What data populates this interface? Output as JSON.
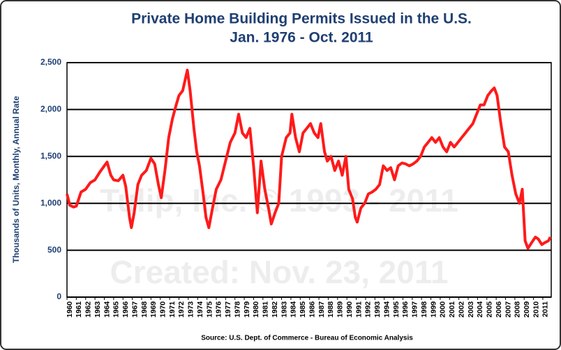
{
  "chart_data": {
    "type": "line",
    "title": "Private Home Building Permits Issued in the U.S.",
    "subtitle": "Jan. 1976 - Oct. 2011",
    "ylabel": "Thousands of Units, Monthly, Annual Rate",
    "source": "Source: U.S. Dept. of Commerce - Bureau of Economic Analysis",
    "annotations": [
      "Tulip, Inc. © 1993 - 2011",
      "Created: Nov. 23, 2011"
    ],
    "xlim": [
      1960,
      2011.9
    ],
    "ylim": [
      0,
      2500
    ],
    "yticks": [
      0,
      500,
      {
        "value": 1000,
        "label": "1,000"
      },
      {
        "value": 1500,
        "label": "1,500"
      },
      {
        "value": 2000,
        "label": "2,000"
      },
      {
        "value": 2500,
        "label": "2,500"
      }
    ],
    "xticks": [
      1960,
      1961,
      1962,
      1963,
      1964,
      1965,
      1966,
      1967,
      1968,
      1969,
      1970,
      1971,
      1972,
      1973,
      1974,
      1975,
      1976,
      1977,
      1978,
      1979,
      1980,
      1981,
      1982,
      1983,
      1984,
      1985,
      1986,
      1987,
      1988,
      1989,
      1990,
      1991,
      1992,
      1993,
      1994,
      1995,
      1996,
      1997,
      1998,
      1999,
      2000,
      2001,
      2002,
      2003,
      2004,
      2005,
      2006,
      2007,
      2008,
      2009,
      2010,
      2011
    ],
    "grid": true,
    "x": [
      1960.0,
      1960.3,
      1960.7,
      1961.0,
      1961.5,
      1962.0,
      1962.5,
      1963.0,
      1963.5,
      1964.0,
      1964.3,
      1964.7,
      1965.0,
      1965.5,
      1966.0,
      1966.3,
      1966.7,
      1966.9,
      1967.2,
      1967.6,
      1968.0,
      1968.5,
      1969.0,
      1969.4,
      1969.8,
      1970.1,
      1970.5,
      1970.9,
      1971.3,
      1971.7,
      1972.0,
      1972.4,
      1972.9,
      1973.2,
      1973.6,
      1973.9,
      1974.2,
      1974.6,
      1974.9,
      1975.2,
      1975.6,
      1976.0,
      1976.5,
      1977.0,
      1977.5,
      1978.0,
      1978.4,
      1978.8,
      1979.2,
      1979.6,
      1980.0,
      1980.4,
      1980.8,
      1981.2,
      1981.6,
      1981.9,
      1982.3,
      1982.7,
      1983.0,
      1983.5,
      1983.9,
      1984.1,
      1984.5,
      1984.9,
      1985.3,
      1985.7,
      1986.1,
      1986.5,
      1986.9,
      1987.2,
      1987.6,
      1987.9,
      1988.3,
      1988.7,
      1989.1,
      1989.5,
      1989.9,
      1990.2,
      1990.6,
      1990.9,
      1991.1,
      1991.5,
      1991.9,
      1992.3,
      1992.7,
      1993.1,
      1993.5,
      1993.9,
      1994.3,
      1994.7,
      1995.1,
      1995.5,
      1995.9,
      1996.3,
      1996.7,
      1997.1,
      1997.5,
      1997.9,
      1998.3,
      1998.7,
      1999.1,
      1999.5,
      1999.9,
      2000.3,
      2000.7,
      2001.1,
      2001.5,
      2001.9,
      2002.3,
      2002.7,
      2003.1,
      2003.5,
      2003.9,
      2004.3,
      2004.7,
      2005.1,
      2005.5,
      2005.8,
      2006.1,
      2006.5,
      2006.9,
      2007.3,
      2007.7,
      2008.1,
      2008.5,
      2008.8,
      2009.1,
      2009.4,
      2009.8,
      2010.2,
      2010.5,
      2010.9,
      2011.2,
      2011.6,
      2011.8
    ],
    "series": [
      {
        "color": "#ff1a1a",
        "values": [
          1100,
          980,
          960,
          970,
          1120,
          1150,
          1220,
          1250,
          1330,
          1400,
          1440,
          1300,
          1250,
          1240,
          1300,
          1180,
          850,
          740,
          900,
          1200,
          1300,
          1350,
          1480,
          1420,
          1200,
          1060,
          1350,
          1700,
          1900,
          2050,
          2150,
          2200,
          2420,
          2200,
          1800,
          1550,
          1400,
          1100,
          850,
          740,
          950,
          1150,
          1250,
          1450,
          1650,
          1750,
          1950,
          1750,
          1700,
          1800,
          1400,
          900,
          1450,
          1150,
          950,
          780,
          900,
          1000,
          1500,
          1700,
          1750,
          1950,
          1700,
          1550,
          1750,
          1800,
          1850,
          1750,
          1700,
          1850,
          1550,
          1450,
          1500,
          1350,
          1450,
          1300,
          1500,
          1150,
          1050,
          850,
          800,
          950,
          1000,
          1100,
          1120,
          1150,
          1200,
          1400,
          1350,
          1380,
          1250,
          1400,
          1430,
          1420,
          1400,
          1420,
          1450,
          1500,
          1600,
          1650,
          1700,
          1650,
          1700,
          1600,
          1550,
          1650,
          1600,
          1650,
          1700,
          1750,
          1800,
          1850,
          1950,
          2050,
          2050,
          2150,
          2200,
          2230,
          2150,
          1850,
          1600,
          1550,
          1300,
          1100,
          1000,
          1150,
          600,
          520,
          580,
          640,
          620,
          560,
          580,
          600,
          640
        ]
      }
    ]
  }
}
